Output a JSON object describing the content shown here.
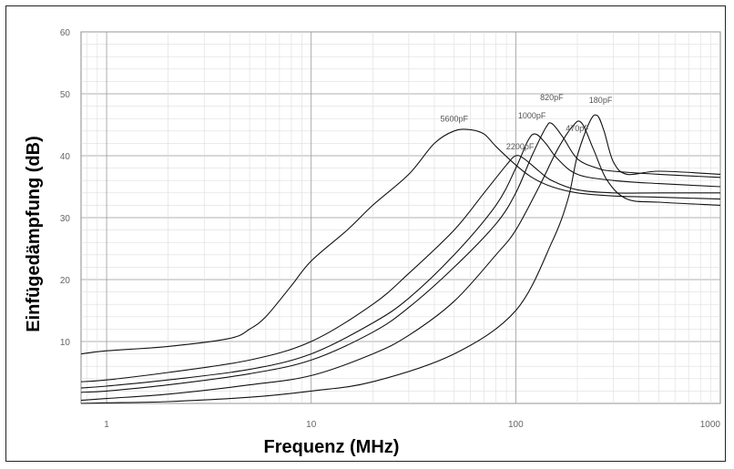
{
  "chart_data": {
    "type": "line",
    "xlabel": "Frequenz (MHz)",
    "ylabel": "Einfügedämpfung (dB)",
    "x_scale": "log",
    "xlim": [
      0.75,
      1000
    ],
    "ylim": [
      0,
      60
    ],
    "x_ticks": [
      1,
      10,
      100,
      1000
    ],
    "x_tick_labels": [
      "1",
      "10",
      "100",
      "1000"
    ],
    "y_ticks": [
      10,
      20,
      30,
      40,
      50,
      60
    ],
    "grid": true,
    "series": [
      {
        "name": "5600pF",
        "x": [
          0.75,
          1,
          2,
          4,
          5,
          6,
          8,
          10,
          15,
          20,
          30,
          40,
          50,
          60,
          70,
          80,
          100,
          120,
          150,
          200,
          300,
          500,
          1000
        ],
        "y": [
          8,
          8.5,
          9.2,
          10.5,
          12,
          14,
          19,
          23,
          28,
          32,
          37,
          42,
          44,
          44.2,
          43.5,
          41.5,
          38.5,
          36.5,
          35,
          34,
          33.5,
          33.3,
          33
        ]
      },
      {
        "name": "2200pF",
        "x": [
          0.75,
          1,
          2,
          5,
          10,
          20,
          30,
          50,
          70,
          90,
          100,
          110,
          130,
          150,
          200,
          300,
          500,
          1000
        ],
        "y": [
          3.5,
          3.8,
          5,
          7,
          10,
          16,
          21,
          28,
          34,
          38.5,
          40,
          39.5,
          37.5,
          36,
          34.5,
          34,
          34,
          34
        ]
      },
      {
        "name": "1000pF",
        "x": [
          0.75,
          1,
          2,
          5,
          10,
          20,
          30,
          50,
          80,
          100,
          115,
          125,
          140,
          160,
          200,
          300,
          500,
          1000
        ],
        "y": [
          2.5,
          2.8,
          3.8,
          5.5,
          8,
          13,
          17,
          24,
          32,
          38,
          42.5,
          43.5,
          42,
          39.5,
          37,
          36,
          35.5,
          35
        ]
      },
      {
        "name": "820pF",
        "x": [
          0.75,
          1,
          2,
          5,
          10,
          20,
          30,
          50,
          80,
          100,
          120,
          140,
          150,
          170,
          200,
          250,
          300,
          500,
          1000
        ],
        "y": [
          1.8,
          2,
          3,
          4.8,
          7,
          11.5,
          15.5,
          22,
          29,
          34,
          40,
          44.5,
          45.2,
          43,
          39.5,
          38,
          37.5,
          37,
          36.5
        ]
      },
      {
        "name": "470pF",
        "x": [
          0.75,
          1,
          2,
          5,
          10,
          20,
          30,
          50,
          80,
          100,
          130,
          160,
          190,
          210,
          240,
          280,
          350,
          500,
          1000
        ],
        "y": [
          0.5,
          0.8,
          1.5,
          3,
          4.5,
          8,
          11,
          16.5,
          24,
          28,
          35,
          41,
          44.8,
          45.3,
          41,
          36,
          33,
          32.5,
          32
        ]
      },
      {
        "name": "180pF",
        "x": [
          0.75,
          1,
          2,
          5,
          10,
          20,
          50,
          100,
          150,
          180,
          200,
          230,
          250,
          270,
          300,
          350,
          500,
          1000
        ],
        "y": [
          0,
          0.1,
          0.3,
          1,
          2,
          3.5,
          8,
          15,
          26,
          33,
          40,
          45.5,
          46.5,
          44,
          39,
          37,
          37.5,
          37
        ]
      }
    ],
    "annotations": [
      {
        "text": "5600pF",
        "x": 50,
        "y": 45.5
      },
      {
        "text": "2200pF",
        "x": 105,
        "y": 41
      },
      {
        "text": "1000pF",
        "x": 120,
        "y": 46
      },
      {
        "text": "820pF",
        "x": 150,
        "y": 49
      },
      {
        "text": "470pF",
        "x": 200,
        "y": 44
      },
      {
        "text": "180pF",
        "x": 260,
        "y": 48.5
      }
    ]
  }
}
